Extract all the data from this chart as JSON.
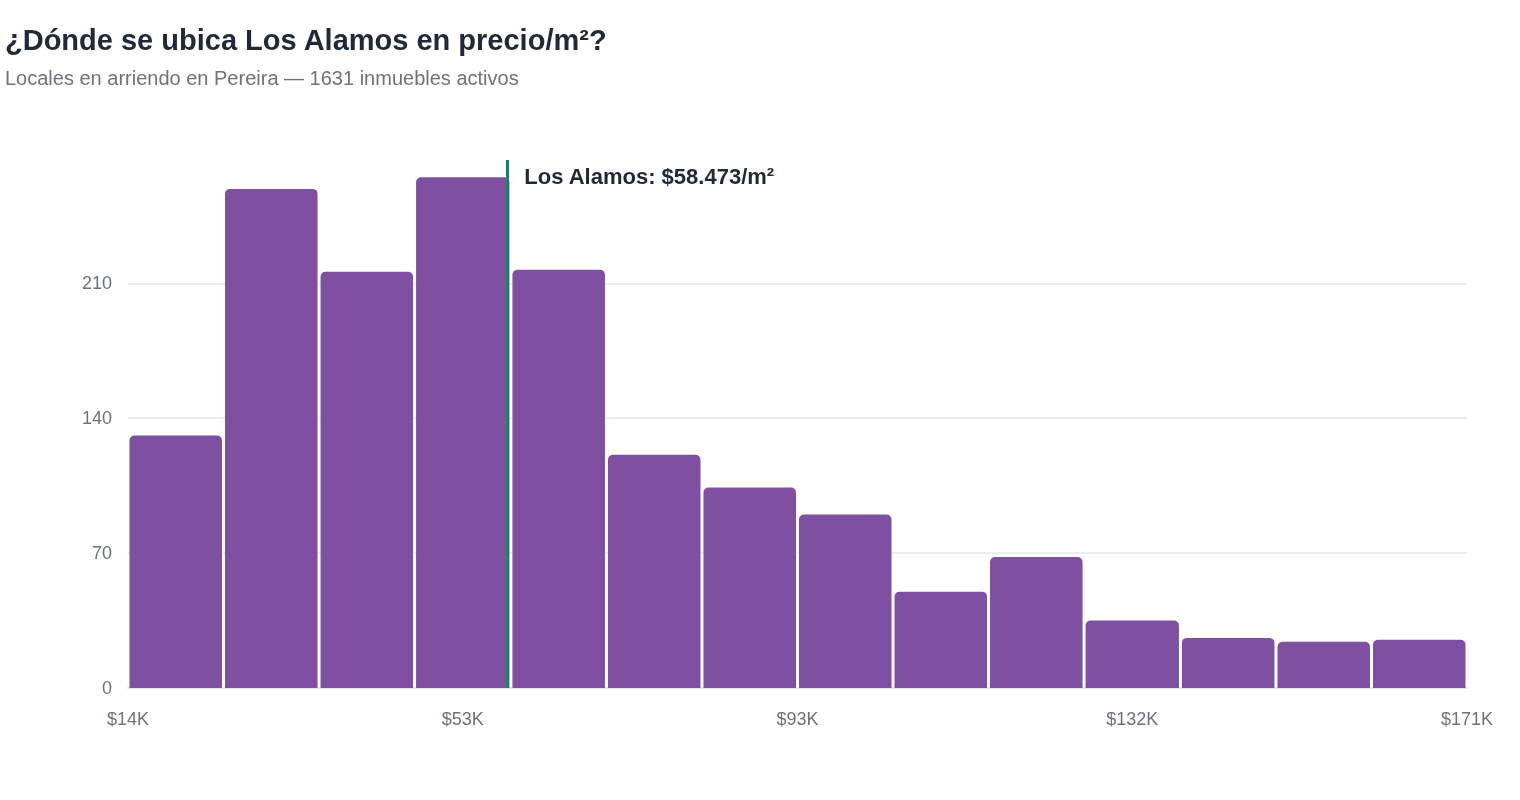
{
  "chart_data": {
    "type": "histogram",
    "title": "¿Dónde se ubica Los Alamos en precio/m²?",
    "subtitle": "Locales en arriendo en Pereira — 1631 inmuebles activos",
    "bins": [
      14,
      25.2,
      36.4,
      47.6,
      58.9,
      70.1,
      81.3,
      92.5,
      103.7,
      114.9,
      126.1,
      137.4,
      148.6,
      159.8,
      171
    ],
    "values": [
      131,
      259,
      216,
      265,
      217,
      121,
      104,
      90,
      50,
      68,
      35,
      26,
      24,
      25
    ],
    "color": "#7f4fa1",
    "xlim": [
      14,
      171
    ],
    "xticks": [
      {
        "value": 14,
        "label": "$14K"
      },
      {
        "value": 53.25,
        "label": "$53K"
      },
      {
        "value": 92.5,
        "label": "$93K"
      },
      {
        "value": 131.75,
        "label": "$132K"
      },
      {
        "value": 171,
        "label": "$171K"
      }
    ],
    "ylim": [
      0,
      274
    ],
    "yticks": [
      0,
      70,
      140,
      210
    ],
    "grid": "y",
    "ref_lines": [
      {
        "axis": "x",
        "value": 58.473,
        "label": "Los Alamos: $58.473/m²",
        "color": "#0e8a5f"
      }
    ]
  }
}
